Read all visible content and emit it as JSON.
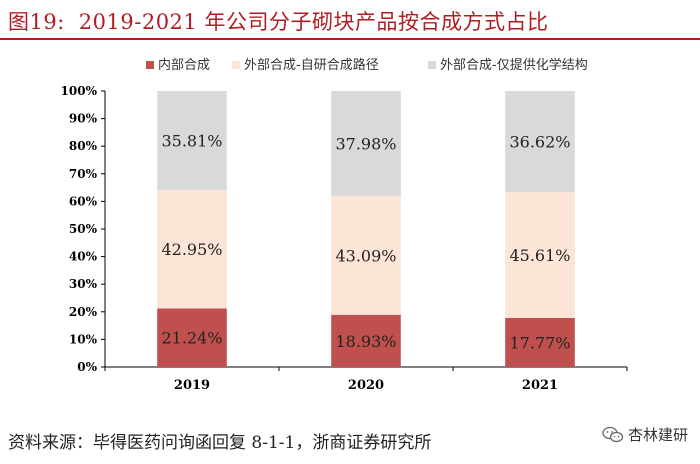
{
  "title": {
    "figure": "图19:",
    "text": "2019-2021 年公司分子砌块产品按合成方式占比"
  },
  "source": "资料来源：毕得医药问询函回复 8-1-1，浙商证券研究所",
  "watermark": {
    "icon": "wechat-icon",
    "text": "杏林建研"
  },
  "chart_data": {
    "type": "bar",
    "stacked": true,
    "categories": [
      "2019",
      "2020",
      "2021"
    ],
    "series": [
      {
        "name": "内部合成",
        "values": [
          21.24,
          18.93,
          17.77
        ],
        "labels": [
          "21.24%",
          "18.93%",
          "17.77%"
        ],
        "color": "#c0504d"
      },
      {
        "name": "外部合成-自研合成路径",
        "values": [
          42.95,
          43.09,
          45.61
        ],
        "labels": [
          "42.95%",
          "43.09%",
          "45.61%"
        ],
        "color": "#fce4d6"
      },
      {
        "name": "外部合成-仅提供化学结构",
        "values": [
          35.81,
          37.98,
          36.62
        ],
        "labels": [
          "35.81%",
          "37.98%",
          "36.62%"
        ],
        "color": "#d9d9d9"
      }
    ],
    "yticks": [
      "0%",
      "10%",
      "20%",
      "30%",
      "40%",
      "50%",
      "60%",
      "70%",
      "80%",
      "90%",
      "100%"
    ],
    "ylim": [
      0,
      100
    ],
    "legend_position": "top",
    "grid": false
  }
}
